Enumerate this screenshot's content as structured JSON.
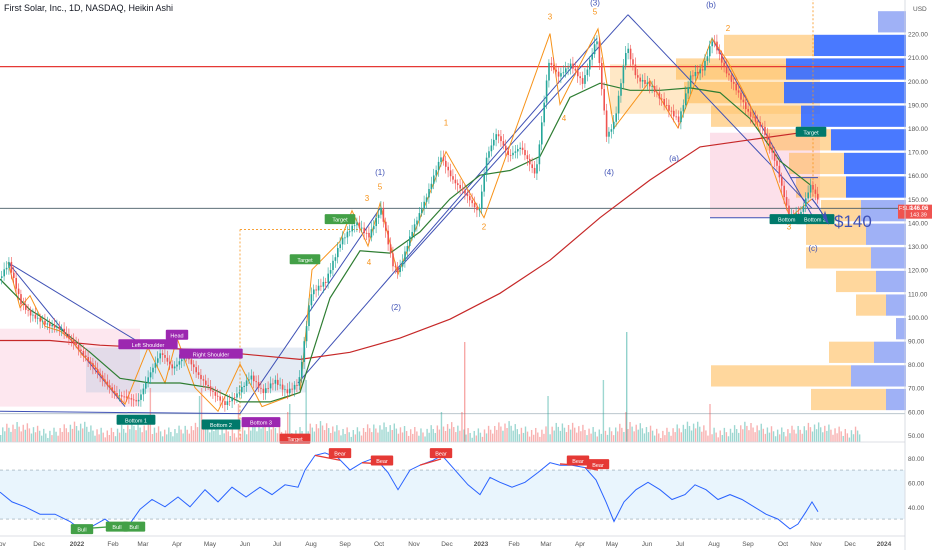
{
  "header": {
    "title": "First Solar, Inc., 1D, NASDAQ, Heikin Ashi",
    "currency": "USD"
  },
  "chart_data": [
    {
      "type": "line",
      "panel": "price",
      "y_ticks": [
        220,
        210,
        200,
        190,
        180,
        170,
        160,
        150,
        140,
        130,
        120,
        110,
        100,
        90,
        80,
        70,
        60,
        50
      ],
      "ylim": [
        47,
        230
      ],
      "x_tick_labels": [
        {
          "label": "Nov",
          "t": 0
        },
        {
          "label": "Dec",
          "t": 39
        },
        {
          "label": "2022",
          "t": 77
        },
        {
          "label": "Feb",
          "t": 113
        },
        {
          "label": "Mar",
          "t": 143
        },
        {
          "label": "Apr",
          "t": 177
        },
        {
          "label": "May",
          "t": 210
        },
        {
          "label": "Jun",
          "t": 245
        },
        {
          "label": "Jul",
          "t": 277
        },
        {
          "label": "Aug",
          "t": 311
        },
        {
          "label": "Sep",
          "t": 345
        },
        {
          "label": "Oct",
          "t": 379
        },
        {
          "label": "Nov",
          "t": 414
        },
        {
          "label": "Dec",
          "t": 447
        },
        {
          "label": "2023",
          "t": 481
        },
        {
          "label": "Feb",
          "t": 514
        },
        {
          "label": "Mar",
          "t": 546
        },
        {
          "label": "Apr",
          "t": 580
        },
        {
          "label": "May",
          "t": 612
        },
        {
          "label": "Jun",
          "t": 647
        },
        {
          "label": "Jul",
          "t": 680
        },
        {
          "label": "Aug",
          "t": 714
        },
        {
          "label": "Sep",
          "t": 748
        },
        {
          "label": "Oct",
          "t": 783
        },
        {
          "label": "Nov",
          "t": 816
        },
        {
          "label": "Dec",
          "t": 850
        },
        {
          "label": "2024",
          "t": 884
        }
      ],
      "price_path": [
        [
          0,
          117
        ],
        [
          8,
          123
        ],
        [
          20,
          106
        ],
        [
          30,
          101
        ],
        [
          45,
          97
        ],
        [
          60,
          95
        ],
        [
          75,
          88
        ],
        [
          90,
          80
        ],
        [
          105,
          72
        ],
        [
          115,
          67
        ],
        [
          125,
          66
        ],
        [
          137,
          64
        ],
        [
          148,
          75
        ],
        [
          160,
          85
        ],
        [
          172,
          78
        ],
        [
          185,
          84
        ],
        [
          198,
          75
        ],
        [
          212,
          68
        ],
        [
          224,
          63
        ],
        [
          236,
          67
        ],
        [
          250,
          75
        ],
        [
          262,
          68
        ],
        [
          274,
          73
        ],
        [
          286,
          68
        ],
        [
          298,
          72
        ],
        [
          310,
          110
        ],
        [
          325,
          115
        ],
        [
          340,
          132
        ],
        [
          355,
          140
        ],
        [
          368,
          134
        ],
        [
          380,
          146
        ],
        [
          392,
          122
        ],
        [
          398,
          119
        ],
        [
          410,
          135
        ],
        [
          425,
          150
        ],
        [
          440,
          168
        ],
        [
          452,
          158
        ],
        [
          465,
          152
        ],
        [
          478,
          144
        ],
        [
          486,
          168
        ],
        [
          496,
          178
        ],
        [
          508,
          168
        ],
        [
          520,
          172
        ],
        [
          535,
          160
        ],
        [
          548,
          208
        ],
        [
          558,
          202
        ],
        [
          570,
          207
        ],
        [
          582,
          199
        ],
        [
          596,
          218
        ],
        [
          606,
          176
        ],
        [
          614,
          183
        ],
        [
          626,
          215
        ],
        [
          636,
          201
        ],
        [
          650,
          198
        ],
        [
          664,
          190
        ],
        [
          678,
          183
        ],
        [
          690,
          202
        ],
        [
          702,
          205
        ],
        [
          712,
          218
        ],
        [
          724,
          205
        ],
        [
          736,
          196
        ],
        [
          748,
          186
        ],
        [
          762,
          180
        ],
        [
          776,
          164
        ],
        [
          788,
          143
        ],
        [
          800,
          144
        ],
        [
          810,
          156
        ],
        [
          818,
          149
        ]
      ],
      "ma_green": [
        [
          0,
          116
        ],
        [
          30,
          103
        ],
        [
          60,
          95
        ],
        [
          90,
          85
        ],
        [
          120,
          74
        ],
        [
          150,
          72
        ],
        [
          180,
          72
        ],
        [
          210,
          70
        ],
        [
          240,
          64
        ],
        [
          270,
          64
        ],
        [
          300,
          68
        ],
        [
          330,
          108
        ],
        [
          360,
          128
        ],
        [
          390,
          127
        ],
        [
          420,
          136
        ],
        [
          450,
          150
        ],
        [
          480,
          160
        ],
        [
          510,
          162
        ],
        [
          540,
          168
        ],
        [
          570,
          193
        ],
        [
          600,
          199
        ],
        [
          630,
          196
        ],
        [
          660,
          196
        ],
        [
          690,
          197
        ],
        [
          720,
          195
        ],
        [
          750,
          184
        ],
        [
          780,
          166
        ],
        [
          810,
          156
        ]
      ],
      "ma_red": [
        [
          0,
          90
        ],
        [
          50,
          90
        ],
        [
          100,
          88
        ],
        [
          150,
          87
        ],
        [
          200,
          86
        ],
        [
          250,
          84
        ],
        [
          300,
          82
        ],
        [
          350,
          85
        ],
        [
          400,
          91
        ],
        [
          450,
          99
        ],
        [
          500,
          110
        ],
        [
          550,
          124
        ],
        [
          600,
          142
        ],
        [
          650,
          158
        ],
        [
          700,
          172
        ],
        [
          750,
          175
        ],
        [
          800,
          178
        ],
        [
          820,
          178
        ]
      ],
      "wave_labels": [
        {
          "text": "(1)",
          "t": 380,
          "v": 160,
          "color": "#3f51b5"
        },
        {
          "text": "5",
          "t": 380,
          "v": 154,
          "color": "#f7931a"
        },
        {
          "text": "3",
          "t": 367,
          "v": 149,
          "color": "#f7931a"
        },
        {
          "text": "4",
          "t": 369,
          "v": 122,
          "color": "#f7931a"
        },
        {
          "text": "(2)",
          "t": 396,
          "v": 103,
          "color": "#3f51b5"
        },
        {
          "text": "1",
          "t": 446,
          "v": 181,
          "color": "#f7931a"
        },
        {
          "text": "2",
          "t": 484,
          "v": 137,
          "color": "#f7931a"
        },
        {
          "text": "3",
          "t": 550,
          "v": 226,
          "color": "#f7931a"
        },
        {
          "text": "4",
          "t": 564,
          "v": 183,
          "color": "#f7931a"
        },
        {
          "text": "(3)",
          "t": 595,
          "v": 232,
          "color": "#3f51b5"
        },
        {
          "text": "5",
          "t": 595,
          "v": 228,
          "color": "#f7931a"
        },
        {
          "text": "(4)",
          "t": 609,
          "v": 160,
          "color": "#3f51b5"
        },
        {
          "text": "(a)",
          "t": 674,
          "v": 166,
          "color": "#3f51b5"
        },
        {
          "text": "(b)",
          "t": 711,
          "v": 231,
          "color": "#3f51b5"
        },
        {
          "text": "2",
          "t": 728,
          "v": 221,
          "color": "#f7931a"
        },
        {
          "text": "3",
          "t": 789,
          "v": 137,
          "color": "#f7931a"
        },
        {
          "text": "(c)",
          "t": 813,
          "v": 128,
          "color": "#3f51b5"
        }
      ],
      "tags": [
        {
          "text": "Target",
          "t": 340,
          "v": 141,
          "bg": "#43a047"
        },
        {
          "text": "Target",
          "t": 305,
          "v": 124,
          "bg": "#43a047"
        },
        {
          "text": "Head",
          "t": 177,
          "v": 92,
          "bg": "#9c27b0"
        },
        {
          "text": "Left Shoulder",
          "t": 148,
          "v": 88,
          "bg": "#9c27b0"
        },
        {
          "text": "Right Shoulder",
          "t": 211,
          "v": 84,
          "bg": "#9c27b0"
        },
        {
          "text": "Bottom 1",
          "t": 136,
          "v": 56,
          "bg": "#00796b"
        },
        {
          "text": "Bottom 2",
          "t": 221,
          "v": 54,
          "bg": "#00796b"
        },
        {
          "text": "Bottom 3",
          "t": 261,
          "v": 55,
          "bg": "#9c27b0"
        },
        {
          "text": "Target",
          "t": 295,
          "v": 48,
          "bg": "#e53935"
        },
        {
          "text": "Target",
          "t": 811,
          "v": 178,
          "bg": "#00796b"
        },
        {
          "text": "Bottom 1",
          "t": 789,
          "v": 141,
          "bg": "#00796b"
        },
        {
          "text": "Bottom 2",
          "t": 815,
          "v": 141,
          "bg": "#00796b"
        }
      ],
      "big_label": {
        "text": "$140",
        "t": 834,
        "v": 141,
        "color": "#3f51b5"
      },
      "price_tag": {
        "symbol": "FSLR",
        "price": "146.06",
        "sub": "143.39",
        "v": 145
      }
    },
    {
      "type": "line",
      "panel": "rsi",
      "y_ticks": [
        80,
        60,
        40
      ],
      "ylim": [
        17,
        88
      ],
      "band": [
        30,
        70
      ],
      "rsi": [
        [
          0,
          52
        ],
        [
          12,
          44
        ],
        [
          25,
          40
        ],
        [
          40,
          34
        ],
        [
          55,
          34
        ],
        [
          70,
          28
        ],
        [
          80,
          22
        ],
        [
          92,
          24
        ],
        [
          105,
          30
        ],
        [
          115,
          24
        ],
        [
          128,
          24
        ],
        [
          140,
          38
        ],
        [
          152,
          46
        ],
        [
          165,
          40
        ],
        [
          178,
          48
        ],
        [
          190,
          40
        ],
        [
          205,
          54
        ],
        [
          218,
          44
        ],
        [
          232,
          56
        ],
        [
          246,
          48
        ],
        [
          260,
          56
        ],
        [
          272,
          50
        ],
        [
          285,
          58
        ],
        [
          298,
          56
        ],
        [
          305,
          70
        ],
        [
          315,
          82
        ],
        [
          325,
          84
        ],
        [
          338,
          80
        ],
        [
          350,
          70
        ],
        [
          362,
          76
        ],
        [
          375,
          80
        ],
        [
          388,
          68
        ],
        [
          398,
          54
        ],
        [
          410,
          70
        ],
        [
          420,
          74
        ],
        [
          433,
          78
        ],
        [
          442,
          82
        ],
        [
          455,
          70
        ],
        [
          468,
          58
        ],
        [
          480,
          50
        ],
        [
          490,
          64
        ],
        [
          500,
          60
        ],
        [
          512,
          56
        ],
        [
          525,
          60
        ],
        [
          538,
          68
        ],
        [
          550,
          76
        ],
        [
          560,
          74
        ],
        [
          572,
          74
        ],
        [
          585,
          72
        ],
        [
          596,
          62
        ],
        [
          606,
          44
        ],
        [
          614,
          28
        ],
        [
          624,
          44
        ],
        [
          636,
          54
        ],
        [
          648,
          60
        ],
        [
          660,
          54
        ],
        [
          672,
          46
        ],
        [
          685,
          50
        ],
        [
          695,
          58
        ],
        [
          706,
          54
        ],
        [
          718,
          46
        ],
        [
          730,
          50
        ],
        [
          742,
          46
        ],
        [
          754,
          40
        ],
        [
          766,
          34
        ],
        [
          778,
          30
        ],
        [
          790,
          22
        ],
        [
          798,
          26
        ],
        [
          806,
          36
        ],
        [
          812,
          44
        ],
        [
          818,
          36
        ]
      ],
      "tags": [
        {
          "text": "Bear",
          "t": 340,
          "v": 83,
          "bg": "#e53935"
        },
        {
          "text": "Bear",
          "t": 382,
          "v": 77,
          "bg": "#e53935"
        },
        {
          "text": "Bear",
          "t": 441,
          "v": 83,
          "bg": "#e53935"
        },
        {
          "text": "Bear",
          "t": 578,
          "v": 77,
          "bg": "#e53935"
        },
        {
          "text": "Bear",
          "t": 598,
          "v": 74,
          "bg": "#e53935"
        },
        {
          "text": "Bull",
          "t": 82,
          "v": 21,
          "bg": "#43a047"
        },
        {
          "text": "Bull",
          "t": 117,
          "v": 23,
          "bg": "#43a047"
        },
        {
          "text": "Bull",
          "t": 134,
          "v": 23,
          "bg": "#43a047"
        }
      ]
    }
  ],
  "colors": {
    "up": "#26a69a",
    "down": "#ef5350",
    "ma_green": "#2e7d32",
    "ma_red": "#c62828",
    "trend_blue": "#3f51b5",
    "wave_orange": "#f7931a",
    "rsi_line": "#2962ff"
  }
}
